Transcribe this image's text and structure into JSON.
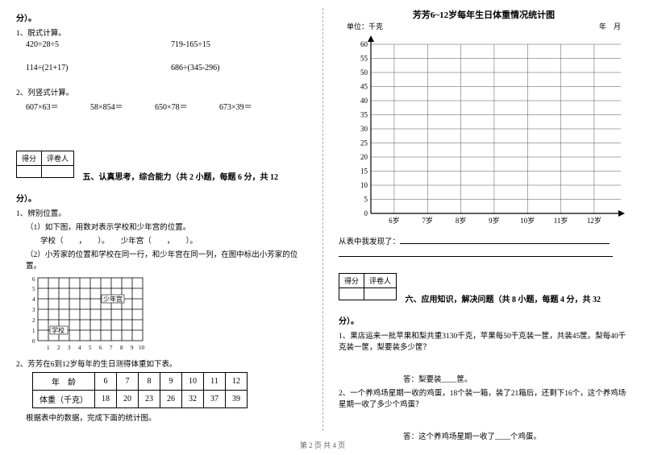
{
  "footer": "第 2 页 共 4 页",
  "left": {
    "fen_top": "分）。",
    "q1_title": "1、脱式计算。",
    "q1_exprs": [
      {
        "a": "420÷28÷5",
        "b": "719-165÷15"
      },
      {
        "a": "114÷(21+17)",
        "b": "686÷(345-296)"
      }
    ],
    "q2_title": "2、列竖式计算。",
    "q2_exprs": [
      "607×63＝",
      "58×854＝",
      "650×78＝",
      "673×39＝"
    ],
    "score_box": {
      "a": "得分",
      "b": "评卷人"
    },
    "sec5": "五、认真思考，综合能力（共 2 小题，每题 6 分，共 12",
    "fen_mid": "分）。",
    "p1_title": "1、辨别位置。",
    "p1_1": "（1）如下图，用数对表示学校和少年宫的位置。",
    "p1_school": "学校（　　，　　）。　　少年宫（　　，　　）。",
    "p1_2": "（2）小芳家的位置和学校在同一行，和少年宫在同一列，在图中标出小芳家的位置。",
    "grid_labels": {
      "school": "学校",
      "palace": "少年宫"
    },
    "p2_title": "2、芳芳在6到12岁每年的生日测得体重如下表。",
    "table_headers": [
      "年　龄",
      "6",
      "7",
      "8",
      "9",
      "10",
      "11",
      "12"
    ],
    "table_row": [
      "体重（千克）",
      "18",
      "20",
      "23",
      "26",
      "32",
      "37",
      "39"
    ],
    "p2_note": "根据表中的数据，完成下面的统计图。"
  },
  "right": {
    "chart_title": "芳芳6~12岁每年生日体重情况统计图",
    "unit": "单位：千克",
    "date": "年　月",
    "y_ticks": [
      "60",
      "55",
      "50",
      "45",
      "40",
      "35",
      "30",
      "25",
      "20",
      "15",
      "10",
      "5",
      "0"
    ],
    "x_ticks": [
      "6岁",
      "7岁",
      "8岁",
      "9岁",
      "10岁",
      "11岁",
      "12岁"
    ],
    "discover": "从表中我发现了：",
    "score_box": {
      "a": "得分",
      "b": "评卷人"
    },
    "sec6": "六、应用知识，解决问题（共 8 小题，每题 4 分，共 32",
    "fen": "分）。",
    "q1": "1、果店运来一批苹果和梨共重3130千克，苹果每50千克装一筐，共装45筐。梨每40千克装一筐，梨要装多少筐？",
    "q1_ans": "答：梨要装____筐。",
    "q2": "2、一个养鸡场星期一收的鸡蛋，18个装一箱，装了21箱后，还剩下16个，这个养鸡场星期一收了多少个鸡蛋？",
    "q2_ans": "答：这个养鸡场星期一收了____个鸡蛋。"
  },
  "colors": {
    "grid": "#555",
    "axis": "#000",
    "text": "#000"
  }
}
